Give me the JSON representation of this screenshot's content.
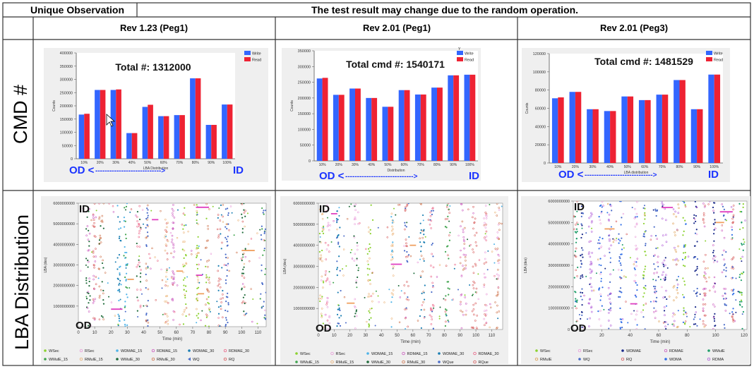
{
  "header": {
    "left": "Unique Observation",
    "right": "The test result may change due to the random operation."
  },
  "columns": [
    "Rev 1.23 (Peg1)",
    "Rev 2.01 (Peg1)",
    "Rev 2.01 (Peg3)"
  ],
  "rows": [
    "CMD #",
    "LBA Distribution"
  ],
  "colors": {
    "write": "#3366ff",
    "read": "#ee2233",
    "annotation": "#1a33ff",
    "border": "#333333"
  },
  "chart_data": [
    {
      "type": "bar",
      "panel": "Rev 1.23 (Peg1)",
      "title": "Total #: 1312000",
      "xlabel": "LBA Distribution",
      "ylabel": "Counts",
      "ylim": [
        0,
        400000
      ],
      "yticks": [
        "0",
        "50000",
        "100000",
        "150000",
        "200000",
        "250000",
        "300000",
        "350000",
        "400000"
      ],
      "categories": [
        "10%",
        "20%",
        "30%",
        "40%",
        "50%",
        "60%",
        "70%",
        "80%",
        "90%",
        "100%"
      ],
      "series": [
        {
          "name": "Write",
          "values": [
            167000,
            260000,
            260000,
            97000,
            196000,
            161000,
            165000,
            304000,
            128000,
            205000
          ]
        },
        {
          "name": "Read",
          "values": [
            170000,
            260000,
            262000,
            97000,
            204000,
            161000,
            165000,
            304000,
            128000,
            205000
          ]
        }
      ],
      "legend": "top-right",
      "od_label": "OD <",
      "arrow": "---------------------------->",
      "id_label": "ID"
    },
    {
      "type": "bar",
      "panel": "Rev 2.01 (Peg1)",
      "title": "Total cmd #: 1540171",
      "xlabel": "Distribution",
      "ylabel": "Counts",
      "ylim": [
        0,
        350000
      ],
      "yticks": [
        "0",
        "50000",
        "100000",
        "150000",
        "200000",
        "250000",
        "300000",
        "350000"
      ],
      "categories": [
        "10%",
        "20%",
        "30%",
        "40%",
        "50%",
        "60%",
        "70%",
        "80%",
        "90%",
        "100%"
      ],
      "series": [
        {
          "name": "Write",
          "values": [
            262000,
            210000,
            230000,
            200000,
            172000,
            225000,
            211000,
            233000,
            272000,
            274000
          ]
        },
        {
          "name": "Read",
          "values": [
            264000,
            210000,
            230000,
            200000,
            172000,
            225000,
            211000,
            233000,
            272000,
            274000
          ]
        }
      ],
      "legend": "top-right",
      "corner": "Y",
      "od_label": "OD <",
      "arrow": "----------------------------->",
      "id_label": "ID"
    },
    {
      "type": "bar",
      "panel": "Rev 2.01 (Peg3)",
      "title": "Total cmd #: 1481529",
      "xlabel": "LBA distribution",
      "ylabel": "Counts",
      "ylim": [
        0,
        120000
      ],
      "yticks": [
        "0",
        "20000",
        "40000",
        "60000",
        "80000",
        "100000",
        "120000"
      ],
      "categories": [
        "10%",
        "20%",
        "30%",
        "40%",
        "50%",
        "60%",
        "70%",
        "80%",
        "90%",
        "100%"
      ],
      "series": [
        {
          "name": "Write",
          "values": [
            71000,
            78000,
            59000,
            57000,
            73000,
            69000,
            75000,
            91000,
            59000,
            97000
          ]
        },
        {
          "name": "Read",
          "values": [
            72000,
            78000,
            59000,
            57000,
            73000,
            69000,
            75000,
            91000,
            59000,
            97000
          ]
        }
      ],
      "legend": "top-right",
      "od_label": "OD <",
      "arrow": "----------------------------->",
      "id_label": "ID"
    },
    {
      "type": "scatter",
      "panel": "Rev 1.23 (Peg1)",
      "xlabel": "Time (min)",
      "ylabel": "LBA (des)",
      "xlim": [
        0,
        115
      ],
      "ylim": [
        0,
        6000000000
      ],
      "xticks": [
        "0",
        "10",
        "20",
        "30",
        "40",
        "50",
        "60",
        "70",
        "80",
        "90",
        "100",
        "110"
      ],
      "yticks": [
        "1000000000",
        "2000000000",
        "3000000000",
        "4000000000",
        "5000000000",
        "6000000000"
      ],
      "id_label": "ID",
      "od_label": "OD",
      "columns_x": [
        6,
        10,
        14,
        25,
        29,
        37,
        42,
        54,
        58,
        65,
        73,
        79,
        87,
        91,
        101,
        113
      ],
      "sequential_segments": [
        {
          "x0": 20,
          "x1": 27,
          "y": 850000000
        },
        {
          "x0": 30,
          "x1": 34,
          "y": 2300000000
        },
        {
          "x0": 45,
          "x1": 49,
          "y": 5200000000
        },
        {
          "x0": 60,
          "x1": 64,
          "y": 2700000000
        },
        {
          "x0": 72,
          "x1": 76,
          "y": 2500000000
        },
        {
          "x0": 73,
          "x1": 77,
          "y": 1600000000
        },
        {
          "x0": 72,
          "x1": 80,
          "y": 5800000000
        },
        {
          "x0": 100,
          "x1": 108,
          "y": 3700000000
        }
      ],
      "series": [
        {
          "name": "WSec",
          "marker": "dot",
          "color": "#8bd12f"
        },
        {
          "name": "RSec",
          "marker": "ring",
          "color": "#e68ad4"
        },
        {
          "name": "WDMAE_15",
          "marker": "dot",
          "color": "#4fb3e8"
        },
        {
          "name": "RDMAE_15",
          "marker": "ring",
          "color": "#c239b3"
        },
        {
          "name": "WDMAE_30",
          "marker": "dot",
          "color": "#1b7fb3"
        },
        {
          "name": "RDMAE_30",
          "marker": "ring",
          "color": "#e8456e"
        },
        {
          "name": "WMulE_15",
          "marker": "dot",
          "color": "#3fa34d"
        },
        {
          "name": "RMulE_15",
          "marker": "ring",
          "color": "#e8a35a"
        },
        {
          "name": "WMulE_30",
          "marker": "dot",
          "color": "#1f6b3a"
        },
        {
          "name": "RMulE_30",
          "marker": "ring",
          "color": "#c75a2b"
        },
        {
          "name": "WQ",
          "marker": "tri",
          "color": "#4a6cc9"
        },
        {
          "name": "RQ",
          "marker": "ring",
          "color": "#d13b3b"
        }
      ]
    },
    {
      "type": "scatter",
      "panel": "Rev 2.01 (Peg1)",
      "xlabel": "Time (min)",
      "ylabel": "LBA (des)",
      "xlim": [
        0,
        117
      ],
      "ylim": [
        0,
        6000000000
      ],
      "xticks": [
        "0",
        "10",
        "20",
        "30",
        "40",
        "50",
        "60",
        "70",
        "80",
        "90",
        "100",
        "110"
      ],
      "yticks": [
        "1000000000",
        "2000000000",
        "3000000000",
        "4000000000",
        "5000000000",
        "6000000000"
      ],
      "id_label": "ID",
      "od_label": "OD",
      "columns_x": [
        2,
        6,
        13,
        24,
        33,
        47,
        56,
        66,
        72,
        82,
        92,
        99,
        106,
        114
      ],
      "sequential_segments": [
        {
          "x0": 8,
          "x1": 12,
          "y": 5500000000
        },
        {
          "x0": 18,
          "x1": 23,
          "y": 1250000000
        },
        {
          "x0": 46,
          "x1": 53,
          "y": 3100000000
        },
        {
          "x0": 58,
          "x1": 62,
          "y": 4000000000
        }
      ],
      "series": [
        {
          "name": "WSec",
          "marker": "dot",
          "color": "#8bd12f"
        },
        {
          "name": "RSec",
          "marker": "ring",
          "color": "#e68ad4"
        },
        {
          "name": "WDMAE_15",
          "marker": "dot",
          "color": "#4fb3e8"
        },
        {
          "name": "RDMAE_15",
          "marker": "ring",
          "color": "#c239b3"
        },
        {
          "name": "WDMAE_30",
          "marker": "dot",
          "color": "#1b7fb3"
        },
        {
          "name": "RDMAE_30",
          "marker": "ring",
          "color": "#e8456e"
        },
        {
          "name": "WMulE_15",
          "marker": "dot",
          "color": "#3fa34d"
        },
        {
          "name": "RMulE_15",
          "marker": "ring",
          "color": "#e8a35a"
        },
        {
          "name": "WMulE_30",
          "marker": "dot",
          "color": "#1f6b3a"
        },
        {
          "name": "RMulE_30",
          "marker": "ring",
          "color": "#c75a2b"
        },
        {
          "name": "WQue",
          "marker": "dot",
          "color": "#4a6cc9"
        },
        {
          "name": "RQue",
          "marker": "ring",
          "color": "#d13b3b"
        }
      ]
    },
    {
      "type": "scatter",
      "panel": "Rev 2.01 (Peg3)",
      "xlabel": "Time (min)",
      "ylabel": "LBA (des)",
      "xlim": [
        0,
        122
      ],
      "ylim": [
        0,
        6000000000
      ],
      "xticks": [
        "20",
        "40",
        "60",
        "80",
        "100",
        "120"
      ],
      "yticks": [
        "0",
        "1000000000",
        "2000000000",
        "3000000000",
        "4000000000",
        "5000000000",
        "6000000000"
      ],
      "id_label": "ID",
      "od_label": "OD",
      "columns_x": [
        2,
        6,
        12,
        19,
        26,
        33,
        44,
        50,
        58,
        64,
        72,
        78,
        86,
        92,
        99,
        106,
        112,
        118
      ],
      "sequential_segments": [
        {
          "x0": 40,
          "x1": 45,
          "y": 1200000000
        },
        {
          "x0": 22,
          "x1": 29,
          "y": 4700000000
        },
        {
          "x0": 62,
          "x1": 70,
          "y": 5700000000
        },
        {
          "x0": 100,
          "x1": 106,
          "y": 5000000000
        },
        {
          "x0": 103,
          "x1": 112,
          "y": 5500000000
        }
      ],
      "series": [
        {
          "name": "WSec",
          "marker": "dot",
          "color": "#8bd12f"
        },
        {
          "name": "RSec",
          "marker": "ring",
          "color": "#e68ad4"
        },
        {
          "name": "WDMAE",
          "marker": "dot",
          "color": "#1a2a8a"
        },
        {
          "name": "RDMAE",
          "marker": "ring",
          "color": "#c239b3"
        },
        {
          "name": "WMulE",
          "marker": "dot",
          "color": "#1f9e6a"
        },
        {
          "name": "RMulE",
          "marker": "ring",
          "color": "#d98c2f"
        },
        {
          "name": "WQ",
          "marker": "dot",
          "color": "#4a6cc9"
        },
        {
          "name": "RQ",
          "marker": "ring",
          "color": "#d13b3b"
        },
        {
          "name": "WDMA",
          "marker": "dot",
          "color": "#2f6ee8"
        },
        {
          "name": "RDMA",
          "marker": "ring",
          "color": "#a13bd1"
        }
      ]
    }
  ]
}
